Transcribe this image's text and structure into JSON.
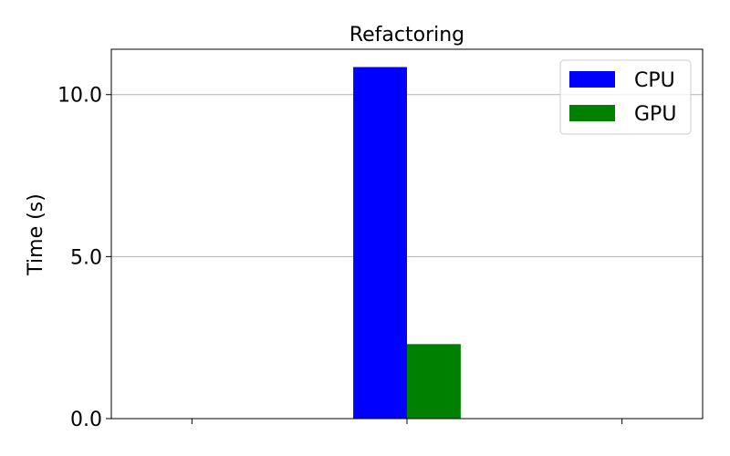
{
  "chart_data": {
    "type": "bar",
    "title": "Refactoring",
    "xlabel": "",
    "ylabel": "Time (s)",
    "categories": [
      "",
      "",
      ""
    ],
    "series": [
      {
        "name": "CPU",
        "color": "#0000ff",
        "values": [
          0,
          10.85,
          0
        ]
      },
      {
        "name": "GPU",
        "color": "#008000",
        "values": [
          0,
          2.3,
          0
        ]
      }
    ],
    "ylim": [
      0,
      11.4
    ],
    "yticks": [
      0,
      5,
      10
    ],
    "ytick_labels": [
      "0.0",
      "5.0",
      "10.0"
    ],
    "grid": "y",
    "legend_position": "top-right"
  }
}
